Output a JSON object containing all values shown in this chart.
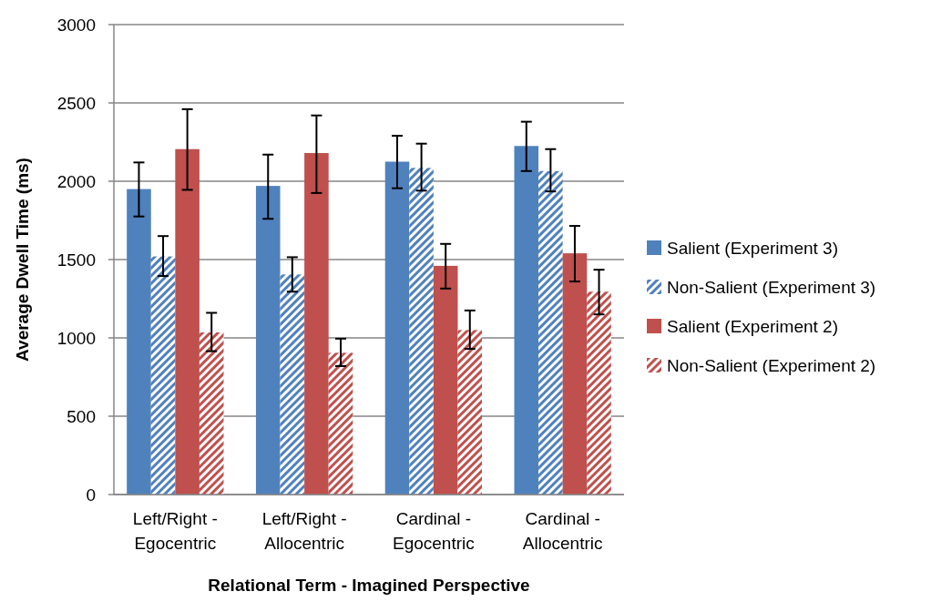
{
  "chart_data": {
    "type": "bar",
    "xlabel": "Relational Term - Imagined Perspective",
    "ylabel": "Average Dwell Time (ms)",
    "categories": [
      "Left/Right - Egocentric",
      "Left/Right - Allocentric",
      "Cardinal - Egocentric",
      "Cardinal - Allocentric"
    ],
    "ylim": [
      0,
      3000
    ],
    "yticks": [
      0,
      500,
      1000,
      1500,
      2000,
      2500,
      3000
    ],
    "grid": "y",
    "legend": "right",
    "series": [
      {
        "name": "Salient (Experiment 3)",
        "color": "#4f81bd",
        "values": [
          1950,
          1970,
          2125,
          2225
        ],
        "errors": [
          [
            1775,
            2120
          ],
          [
            1760,
            2170
          ],
          [
            1955,
            2290
          ],
          [
            2065,
            2380
          ]
        ]
      },
      {
        "name": "Non-Salient (Experiment 3)",
        "color": "#4f81bd",
        "values": [
          1520,
          1405,
          2085,
          2065
        ],
        "errors": [
          [
            1395,
            1650
          ],
          [
            1295,
            1515
          ],
          [
            1940,
            2240
          ],
          [
            1935,
            2205
          ]
        ]
      },
      {
        "name": "Salient (Experiment 2)",
        "color": "#c0504d",
        "values": [
          2205,
          2180,
          1460,
          1540
        ],
        "errors": [
          [
            1945,
            2460
          ],
          [
            1925,
            2420
          ],
          [
            1315,
            1600
          ],
          [
            1360,
            1715
          ]
        ]
      },
      {
        "name": "Non-Salient (Experiment 2)",
        "color": "#c0504d",
        "values": [
          1035,
          905,
          1050,
          1295
        ],
        "errors": [
          [
            915,
            1160
          ],
          [
            820,
            995
          ],
          [
            930,
            1175
          ],
          [
            1150,
            1435
          ]
        ]
      }
    ]
  }
}
